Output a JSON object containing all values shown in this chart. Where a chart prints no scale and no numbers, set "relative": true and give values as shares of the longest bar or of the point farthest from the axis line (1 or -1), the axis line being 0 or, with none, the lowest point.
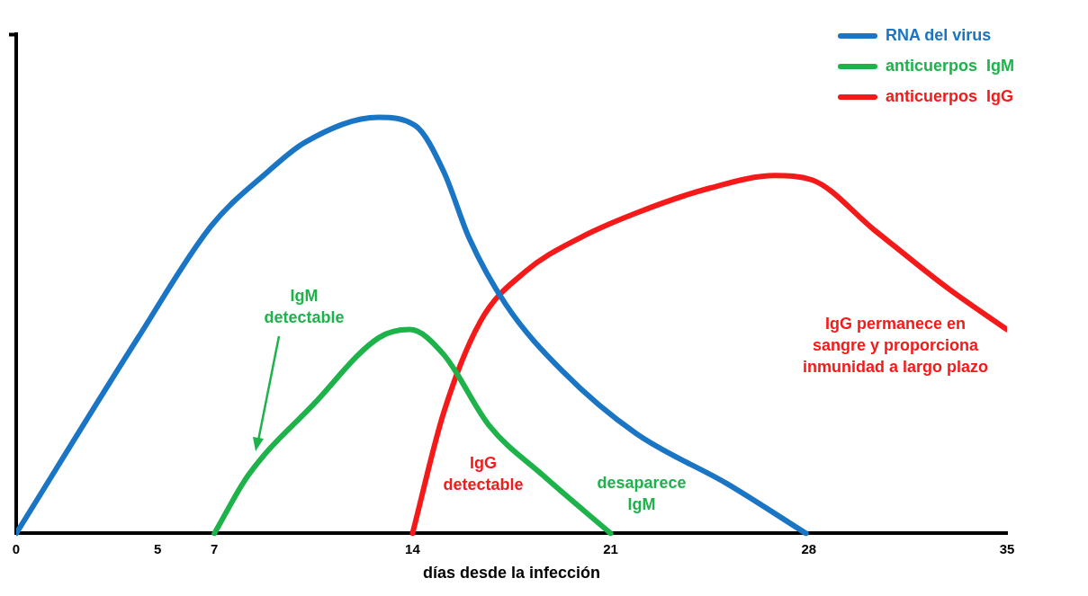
{
  "chart_data": {
    "type": "line",
    "relative": true,
    "xlabel": "días desde la infección",
    "xlim": [
      0,
      35
    ],
    "xticks": [
      0,
      5,
      7,
      14,
      21,
      28,
      35
    ],
    "series": [
      {
        "name": "RNA del virus",
        "color": "#1a75c4",
        "x": [
          0,
          4.3,
          6.9,
          8.9,
          10.2,
          12.8,
          14.1,
          15.1,
          16,
          17.3,
          19.3,
          21.9,
          25.1,
          27.9
        ],
        "values": [
          0,
          0.47,
          0.74,
          0.87,
          0.94,
          1,
          0.98,
          0.87,
          0.71,
          0.55,
          0.39,
          0.24,
          0.12,
          0
        ]
      },
      {
        "name": "anticuerpos  IgM",
        "color": "#1db24a",
        "x": [
          7,
          8.2,
          10.5,
          12.8,
          13.9,
          15.1,
          16.7,
          18.6,
          21
        ],
        "values": [
          0,
          0.14,
          0.31,
          0.47,
          0.49,
          0.43,
          0.26,
          0.14,
          0
        ]
      },
      {
        "name": "anticuerpos  IgG",
        "color": "#f41a1a",
        "x": [
          14,
          15.1,
          16.4,
          18,
          19.9,
          21.9,
          24.5,
          26.8,
          28.1,
          30.3,
          32.9,
          35
        ],
        "values": [
          0,
          0.29,
          0.51,
          0.63,
          0.71,
          0.77,
          0.83,
          0.86,
          0.85,
          0.73,
          0.59,
          0.49
        ]
      }
    ],
    "annotations": [
      "IgM\ndetectable",
      "IgG\ndetectable",
      "desaparece\nIgM",
      "IgG permanece en\nsangre y proporciona\ninmunidad a largo plazo"
    ],
    "grid": false,
    "legend": "top right",
    "marker": "none",
    "line_style": "solid"
  }
}
